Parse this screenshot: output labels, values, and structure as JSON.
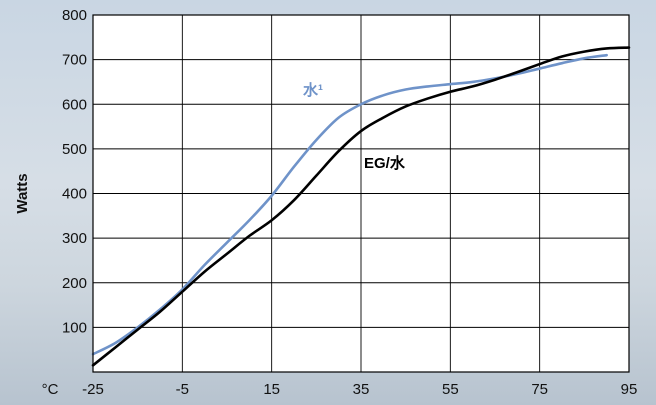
{
  "chart_data": {
    "type": "line",
    "title": "",
    "xlabel": "°C",
    "ylabel": "Watts",
    "xlim": [
      -25,
      95
    ],
    "ylim": [
      0,
      800
    ],
    "xticks": [
      -25,
      -5,
      15,
      35,
      55,
      75,
      95
    ],
    "yticks": [
      100,
      200,
      300,
      400,
      500,
      600,
      700,
      800
    ],
    "grid": true,
    "series": [
      {
        "name": "水¹",
        "color": "#6f93c9",
        "x": [
          -25,
          -20,
          -15,
          -10,
          -5,
          0,
          5,
          10,
          15,
          20,
          25,
          30,
          35,
          40,
          45,
          50,
          55,
          60,
          65,
          70,
          75,
          80,
          85,
          90
        ],
        "y": [
          40,
          65,
          100,
          140,
          185,
          240,
          290,
          340,
          395,
          460,
          520,
          570,
          600,
          620,
          633,
          640,
          645,
          650,
          658,
          668,
          680,
          692,
          703,
          710
        ]
      },
      {
        "name": "EG/水",
        "color": "#000000",
        "x": [
          -25,
          -20,
          -15,
          -10,
          -5,
          0,
          5,
          10,
          15,
          20,
          25,
          30,
          35,
          40,
          45,
          50,
          55,
          60,
          65,
          70,
          75,
          80,
          85,
          90,
          95
        ],
        "y": [
          15,
          55,
          95,
          135,
          180,
          225,
          265,
          305,
          340,
          385,
          440,
          495,
          540,
          570,
          595,
          613,
          628,
          640,
          655,
          672,
          690,
          707,
          718,
          725,
          727
        ]
      }
    ]
  }
}
